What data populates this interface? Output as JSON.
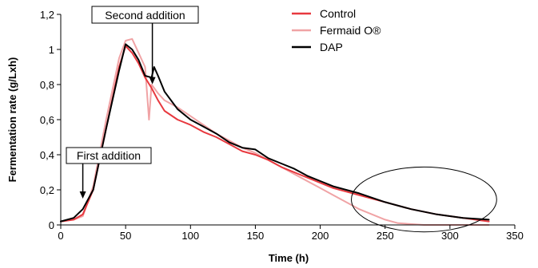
{
  "chart_data": {
    "type": "line",
    "title": "",
    "xlabel": "Time (h)",
    "ylabel": "Fermentation rate (g/Lxh)",
    "xlim": [
      0,
      350
    ],
    "ylim": [
      0,
      1.2
    ],
    "xticks": [
      "0",
      "50",
      "100",
      "150",
      "200",
      "250",
      "300",
      "350"
    ],
    "yticks": [
      "0",
      "0,2",
      "0,4",
      "0,6",
      "0,8",
      "1",
      "1,2"
    ],
    "grid": false,
    "legend_position": "top-right",
    "series": [
      {
        "name": "Control",
        "color": "#e8393f",
        "points": [
          [
            0,
            0.02
          ],
          [
            10,
            0.03
          ],
          [
            17,
            0.06
          ],
          [
            25,
            0.2
          ],
          [
            35,
            0.55
          ],
          [
            45,
            0.9
          ],
          [
            50,
            1.02
          ],
          [
            55,
            0.98
          ],
          [
            60,
            0.92
          ],
          [
            65,
            0.84
          ],
          [
            70,
            0.78
          ],
          [
            75,
            0.71
          ],
          [
            80,
            0.65
          ],
          [
            90,
            0.6
          ],
          [
            100,
            0.57
          ],
          [
            110,
            0.53
          ],
          [
            120,
            0.5
          ],
          [
            130,
            0.46
          ],
          [
            140,
            0.42
          ],
          [
            150,
            0.4
          ],
          [
            160,
            0.37
          ],
          [
            170,
            0.33
          ],
          [
            180,
            0.3
          ],
          [
            190,
            0.27
          ],
          [
            200,
            0.24
          ],
          [
            210,
            0.21
          ],
          [
            220,
            0.19
          ],
          [
            230,
            0.17
          ],
          [
            250,
            0.13
          ],
          [
            270,
            0.09
          ],
          [
            290,
            0.06
          ],
          [
            310,
            0.04
          ],
          [
            330,
            0.02
          ]
        ]
      },
      {
        "name": "Fermaid O®",
        "color": "#f0a3a5",
        "points": [
          [
            0,
            0.02
          ],
          [
            10,
            0.03
          ],
          [
            17,
            0.05
          ],
          [
            25,
            0.22
          ],
          [
            35,
            0.6
          ],
          [
            45,
            0.95
          ],
          [
            50,
            1.05
          ],
          [
            55,
            1.06
          ],
          [
            60,
            0.98
          ],
          [
            65,
            0.9
          ],
          [
            68,
            0.6
          ],
          [
            70,
            0.8
          ],
          [
            75,
            0.75
          ],
          [
            80,
            0.71
          ],
          [
            90,
            0.67
          ],
          [
            100,
            0.62
          ],
          [
            110,
            0.57
          ],
          [
            120,
            0.52
          ],
          [
            130,
            0.48
          ],
          [
            140,
            0.44
          ],
          [
            150,
            0.41
          ],
          [
            160,
            0.37
          ],
          [
            170,
            0.33
          ],
          [
            180,
            0.29
          ],
          [
            190,
            0.25
          ],
          [
            200,
            0.21
          ],
          [
            210,
            0.17
          ],
          [
            220,
            0.13
          ],
          [
            230,
            0.09
          ],
          [
            240,
            0.06
          ],
          [
            250,
            0.03
          ],
          [
            260,
            0.01
          ],
          [
            280,
            0.0
          ],
          [
            300,
            0.0
          ],
          [
            330,
            0.0
          ]
        ]
      },
      {
        "name": "DAP",
        "color": "#000000",
        "points": [
          [
            0,
            0.02
          ],
          [
            10,
            0.04
          ],
          [
            17,
            0.09
          ],
          [
            25,
            0.2
          ],
          [
            35,
            0.55
          ],
          [
            45,
            0.88
          ],
          [
            50,
            1.03
          ],
          [
            55,
            1.0
          ],
          [
            60,
            0.94
          ],
          [
            65,
            0.85
          ],
          [
            70,
            0.84
          ],
          [
            72,
            0.9
          ],
          [
            75,
            0.85
          ],
          [
            80,
            0.76
          ],
          [
            90,
            0.66
          ],
          [
            100,
            0.6
          ],
          [
            110,
            0.56
          ],
          [
            120,
            0.52
          ],
          [
            130,
            0.47
          ],
          [
            140,
            0.44
          ],
          [
            150,
            0.43
          ],
          [
            160,
            0.38
          ],
          [
            170,
            0.35
          ],
          [
            180,
            0.32
          ],
          [
            190,
            0.28
          ],
          [
            200,
            0.25
          ],
          [
            210,
            0.22
          ],
          [
            220,
            0.2
          ],
          [
            230,
            0.18
          ],
          [
            250,
            0.13
          ],
          [
            270,
            0.09
          ],
          [
            290,
            0.06
          ],
          [
            310,
            0.04
          ],
          [
            330,
            0.03
          ]
        ]
      }
    ],
    "annotations": [
      {
        "text": "First addition",
        "x": 17,
        "y": 0.15
      },
      {
        "text": "Second addition",
        "x": 70,
        "y": 1.02
      }
    ],
    "highlight_ellipse": {
      "cx": 280,
      "cy": 0.145,
      "rx": 56,
      "ry": 0.185
    }
  }
}
